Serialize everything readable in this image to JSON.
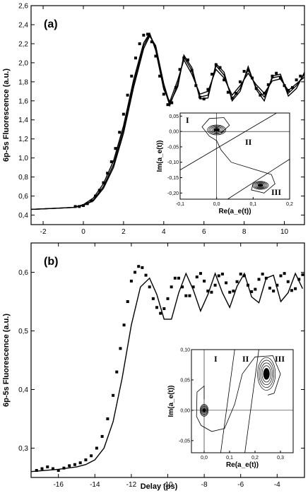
{
  "figure": {
    "x_axis_title": "Delay (ps)",
    "y_axis_title": "6p-5s Fluorescence (a.u.)"
  },
  "chart_data": [
    {
      "type": "scatter",
      "panel_label": "(a)",
      "xlabel": "",
      "ylabel": "6p-5s Fluorescence (a.u.)",
      "xlim": [
        -2.6,
        11.0
      ],
      "ylim": [
        0.3,
        2.6
      ],
      "x_ticks": [
        "-2",
        "0",
        "2",
        "4",
        "6",
        "8",
        "10"
      ],
      "y_ticks": [
        "0,4",
        "0,6",
        "0,8",
        "1,0",
        "1,2",
        "1,4",
        "1,6",
        "1,8",
        "2,0",
        "2,2",
        "2,4",
        "2,6"
      ],
      "series": [
        {
          "kind": "measured points",
          "x": [
            -0.4,
            -0.2,
            0,
            0.2,
            0.4,
            0.6,
            0.8,
            1.0,
            1.2,
            1.4,
            1.6,
            1.8,
            2.0,
            2.2,
            2.4,
            2.6,
            2.8,
            3.0,
            3.2,
            3.4,
            3.6,
            3.8,
            4.0,
            4.2,
            4.4,
            4.6,
            4.8,
            5.0,
            5.2,
            5.4,
            5.6,
            5.8,
            6.0,
            6.2,
            6.4,
            6.6,
            6.8,
            7.0,
            7.2,
            7.4,
            7.6,
            7.8,
            8.0,
            8.2,
            8.4,
            8.6,
            8.8,
            9.0,
            9.2,
            9.4,
            9.6,
            9.8,
            10.0,
            10.2,
            10.4,
            10.6,
            10.8
          ],
          "y": [
            0.49,
            0.49,
            0.5,
            0.52,
            0.55,
            0.6,
            0.66,
            0.74,
            0.84,
            0.96,
            1.1,
            1.27,
            1.46,
            1.66,
            1.86,
            2.05,
            2.2,
            2.29,
            2.3,
            2.22,
            2.07,
            1.86,
            1.67,
            1.56,
            1.58,
            1.74,
            1.93,
            2.05,
            2.03,
            1.92,
            1.76,
            1.64,
            1.62,
            1.72,
            1.88,
            1.98,
            1.95,
            1.82,
            1.69,
            1.63,
            1.68,
            1.8,
            1.91,
            1.92,
            1.84,
            1.73,
            1.66,
            1.68,
            1.77,
            1.86,
            1.89,
            1.84,
            1.76,
            1.71,
            1.74,
            1.82,
            1.86
          ]
        },
        {
          "kind": "calculated curve 1",
          "x": [
            -2.6,
            -1.5,
            -0.5,
            0,
            0.5,
            1.0,
            1.5,
            2.0,
            2.5,
            3.0,
            3.3,
            3.6,
            4.0,
            4.3,
            4.7,
            5.0,
            5.4,
            5.8,
            6.2,
            6.6,
            7.0,
            7.4,
            7.8,
            8.2,
            8.6,
            9.0,
            9.4,
            9.8,
            10.2,
            10.6,
            11.0
          ],
          "y": [
            0.46,
            0.47,
            0.48,
            0.5,
            0.56,
            0.7,
            0.93,
            1.3,
            1.78,
            2.18,
            2.3,
            2.16,
            1.75,
            1.55,
            1.78,
            2.06,
            1.92,
            1.64,
            1.66,
            1.97,
            1.87,
            1.62,
            1.73,
            1.93,
            1.74,
            1.64,
            1.84,
            1.86,
            1.68,
            1.76,
            1.88
          ]
        },
        {
          "kind": "calculated curve 2",
          "x": [
            -2.6,
            -1.5,
            -0.5,
            0,
            0.5,
            1.0,
            1.5,
            2.0,
            2.5,
            3.0,
            3.3,
            3.6,
            4.0,
            4.3,
            4.7,
            5.0,
            5.4,
            5.8,
            6.2,
            6.6,
            7.0,
            7.4,
            7.8,
            8.2,
            8.6,
            9.0,
            9.4,
            9.8,
            10.2,
            10.6,
            11.0
          ],
          "y": [
            0.46,
            0.47,
            0.48,
            0.51,
            0.58,
            0.73,
            0.97,
            1.34,
            1.82,
            2.21,
            2.31,
            2.13,
            1.72,
            1.59,
            1.82,
            2.03,
            1.88,
            1.67,
            1.7,
            1.93,
            1.84,
            1.66,
            1.76,
            1.89,
            1.77,
            1.68,
            1.81,
            1.83,
            1.71,
            1.78,
            1.85
          ]
        },
        {
          "kind": "calculated curve 3",
          "x": [
            -2.6,
            -1.5,
            -0.5,
            0,
            0.5,
            1.0,
            1.5,
            2.0,
            2.5,
            3.0,
            3.3,
            3.6,
            4.0,
            4.3,
            4.7,
            5.0,
            5.4,
            5.8,
            6.2,
            6.6,
            7.0,
            7.4,
            7.8,
            8.2,
            8.6,
            9.0,
            9.4,
            9.8,
            10.2,
            10.6,
            11.0
          ],
          "y": [
            0.46,
            0.47,
            0.48,
            0.5,
            0.55,
            0.68,
            0.9,
            1.26,
            1.74,
            2.15,
            2.28,
            2.18,
            1.78,
            1.57,
            1.75,
            2.08,
            1.95,
            1.62,
            1.63,
            1.99,
            1.9,
            1.6,
            1.7,
            1.96,
            1.72,
            1.6,
            1.86,
            1.88,
            1.65,
            1.73,
            1.9
          ]
        }
      ],
      "inset": {
        "xlabel": "Re(a_e(t))",
        "ylabel": "Im(a_e(t))",
        "xlim": [
          -0.1,
          0.2
        ],
        "ylim": [
          -0.22,
          0.06
        ],
        "x_ticks": [
          "-0,1",
          "0,0",
          "0,1",
          "0,2"
        ],
        "y_ticks": [
          "0,05",
          "0,00",
          "-0,05",
          "-0,10",
          "-0,15",
          "-0,20"
        ],
        "regions": [
          "I",
          "II",
          "III"
        ]
      }
    },
    {
      "type": "scatter",
      "panel_label": "(b)",
      "xlabel": "Delay (ps)",
      "ylabel": "6p-5s Fluorescence (a.u.)",
      "xlim": [
        -17.5,
        -2.5
      ],
      "ylim": [
        0.25,
        0.65
      ],
      "x_ticks": [
        "-16",
        "-14",
        "-12",
        "-10",
        "-8",
        "-6",
        "-4"
      ],
      "y_ticks": [
        "0,3",
        "0,4",
        "0,5",
        "0,6"
      ],
      "series": [
        {
          "kind": "measured points",
          "x": [
            -17.2,
            -16.9,
            -16.6,
            -16.3,
            -16.0,
            -15.7,
            -15.4,
            -15.1,
            -14.8,
            -14.5,
            -14.2,
            -13.9,
            -13.6,
            -13.3,
            -13.0,
            -12.8,
            -12.6,
            -12.4,
            -12.2,
            -12.0,
            -11.8,
            -11.6,
            -11.4,
            -11.2,
            -11.0,
            -10.8,
            -10.6,
            -10.4,
            -10.2,
            -10.0,
            -9.8,
            -9.6,
            -9.4,
            -9.2,
            -9.0,
            -8.8,
            -8.6,
            -8.4,
            -8.2,
            -8.0,
            -7.8,
            -7.6,
            -7.4,
            -7.2,
            -7.0,
            -6.8,
            -6.6,
            -6.4,
            -6.2,
            -6.0,
            -5.8,
            -5.6,
            -5.4,
            -5.2,
            -5.0,
            -4.8,
            -4.6,
            -4.4,
            -4.2,
            -4.0,
            -3.8,
            -3.6,
            -3.4,
            -3.2,
            -3.0,
            -2.8,
            -2.6
          ],
          "y": [
            0.262,
            0.265,
            0.268,
            0.265,
            0.262,
            0.266,
            0.27,
            0.272,
            0.275,
            0.28,
            0.287,
            0.3,
            0.32,
            0.35,
            0.39,
            0.43,
            0.47,
            0.51,
            0.55,
            0.585,
            0.6,
            0.61,
            0.608,
            0.595,
            0.575,
            0.555,
            0.54,
            0.53,
            0.538,
            0.555,
            0.575,
            0.59,
            0.59,
            0.575,
            0.56,
            0.56,
            0.575,
            0.592,
            0.598,
            0.585,
            0.568,
            0.566,
            0.578,
            0.594,
            0.597,
            0.582,
            0.566,
            0.568,
            0.584,
            0.597,
            0.594,
            0.578,
            0.567,
            0.571,
            0.588,
            0.597,
            0.59,
            0.573,
            0.568,
            0.578,
            0.594,
            0.598,
            0.584,
            0.569,
            0.572,
            0.588,
            0.596
          ]
        },
        {
          "kind": "calculated curve",
          "x": [
            -17.5,
            -16.0,
            -15.0,
            -14.5,
            -14.0,
            -13.5,
            -13.0,
            -12.5,
            -12.0,
            -11.5,
            -11.0,
            -10.6,
            -10.2,
            -9.8,
            -9.4,
            -9.0,
            -8.6,
            -8.2,
            -7.8,
            -7.4,
            -7.0,
            -6.6,
            -6.2,
            -5.8,
            -5.4,
            -5.0,
            -4.6,
            -4.2,
            -3.8,
            -3.4,
            -3.0,
            -2.6
          ],
          "y": [
            0.26,
            0.264,
            0.268,
            0.272,
            0.28,
            0.3,
            0.345,
            0.42,
            0.51,
            0.575,
            0.59,
            0.562,
            0.52,
            0.52,
            0.565,
            0.598,
            0.57,
            0.534,
            0.562,
            0.598,
            0.565,
            0.54,
            0.576,
            0.598,
            0.558,
            0.548,
            0.59,
            0.595,
            0.55,
            0.565,
            0.598,
            0.572
          ]
        }
      ],
      "inset": {
        "xlabel": "Re(a_e(t))",
        "ylabel": "Im(a_e(t))",
        "xlim": [
          -0.05,
          0.35
        ],
        "ylim": [
          -0.07,
          0.1
        ],
        "x_ticks": [
          "0,0",
          "0,1",
          "0,2",
          "0,3"
        ],
        "y_ticks": [
          "0,10",
          "0,05",
          "0,00",
          "-0,05"
        ],
        "regions": [
          "I",
          "II",
          "III"
        ]
      }
    }
  ]
}
